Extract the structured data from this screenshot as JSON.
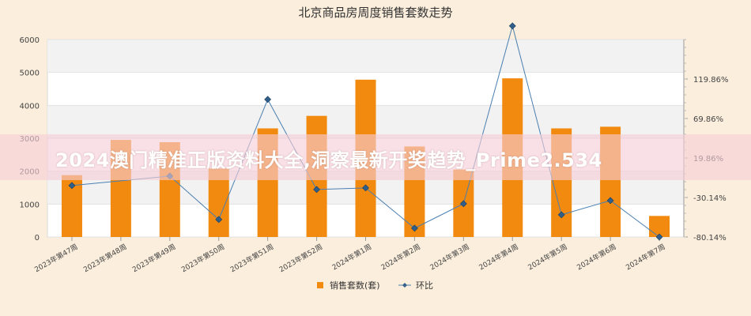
{
  "chart_data": {
    "type": "bar+line",
    "title": "北京商品房周度销售套数走势",
    "categories": [
      "2023年第47周",
      "2023年第48周",
      "2023年第49周",
      "2023年第50周",
      "2023年第51周",
      "2023年第52周",
      "2024年第1周",
      "2024年第2周",
      "2024年第3周",
      "2024年第4周",
      "2024年第5周",
      "2024年第6周",
      "2024年第7周"
    ],
    "series": [
      {
        "name": "销售套数(套)",
        "type": "bar",
        "axis": "left",
        "color": "#f28a10",
        "values": [
          1880,
          2950,
          2880,
          2080,
          3300,
          3680,
          4780,
          2750,
          2050,
          4820,
          3300,
          3350,
          640
        ]
      },
      {
        "name": "环比",
        "type": "line",
        "axis": "right",
        "color": "#4a7fb0",
        "values": [
          -15.0,
          null,
          -3.0,
          -58.0,
          94.0,
          -20.0,
          -18.0,
          -69.0,
          -38.0,
          187.0,
          -52.0,
          -34.0,
          -80.14
        ]
      }
    ],
    "left_axis": {
      "ylim": [
        0,
        6000
      ],
      "ticks": [
        "0",
        "1000",
        "2000",
        "3000",
        "4000",
        "5000",
        "6000"
      ]
    },
    "right_axis": {
      "ylim": [
        -80.14,
        169.86
      ],
      "ticks": [
        "-80.14%",
        "-30.14%",
        "19.86%",
        "69.86%",
        "119.86%"
      ]
    },
    "grid": true,
    "legend": {
      "position": "bottom"
    }
  },
  "overlay": {
    "text": "2024澳门精准正版资料大全,洞察最新开奖趋势_Prime2.534"
  }
}
